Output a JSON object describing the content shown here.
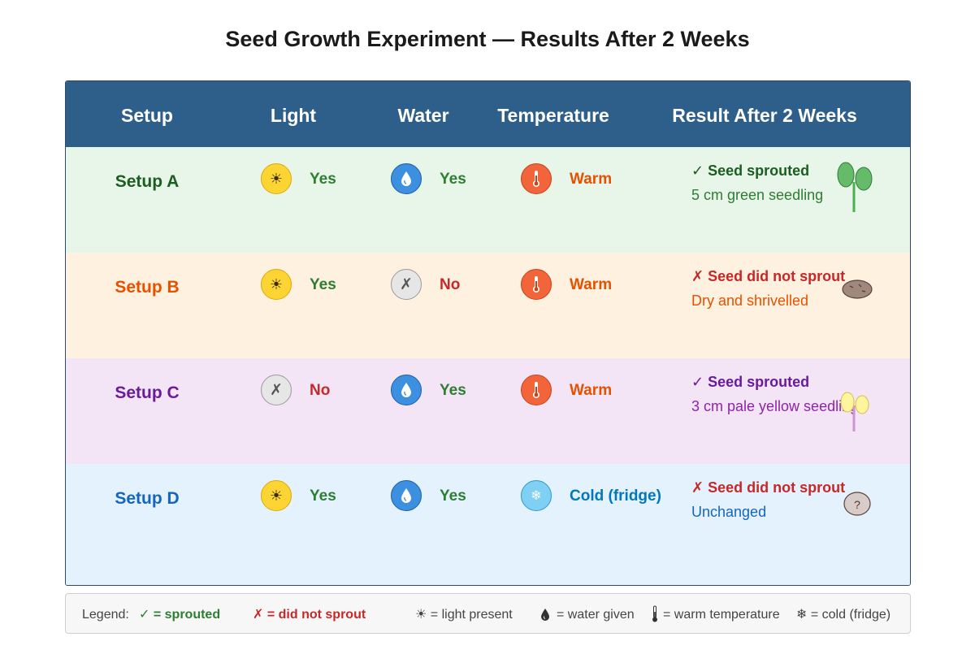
{
  "title": "Seed Growth Experiment — Results After 2 Weeks",
  "headers": {
    "setup": "Setup",
    "light": "Light",
    "water": "Water",
    "temperature": "Temperature",
    "result": "Result After 2 Weeks"
  },
  "rows": [
    {
      "setup": "Setup A",
      "light": "Yes",
      "water": "Yes",
      "temperature": "Warm",
      "result_head": "✓ Seed sprouted",
      "result_sub": "5 cm green seedling",
      "illustration": "green-seedling-icon"
    },
    {
      "setup": "Setup B",
      "light": "Yes",
      "water": "No",
      "temperature": "Warm",
      "result_head": "✗ Seed did not sprout",
      "result_sub": "Dry and shrivelled",
      "illustration": "shrivelled-seed-icon"
    },
    {
      "setup": "Setup C",
      "light": "No",
      "water": "Yes",
      "temperature": "Warm",
      "result_head": "✓ Seed sprouted",
      "result_sub": "3 cm pale yellow seedling",
      "illustration": "pale-seedling-icon"
    },
    {
      "setup": "Setup D",
      "light": "Yes",
      "water": "Yes",
      "temperature": "Cold (fridge)",
      "result_head": "✗ Seed did not sprout",
      "result_sub": "Unchanged",
      "illustration": "unchanged-seed-icon"
    }
  ],
  "icon_glyphs": {
    "none": "✗",
    "snow": "❄",
    "sun": "☀",
    "question": "?"
  },
  "legend": {
    "label": "Legend:",
    "sprouted": "✓ = sprouted",
    "not_sprouted": "✗ = did not sprout",
    "light": "☀ = light present",
    "water": "= water given",
    "warm": "= warm temperature",
    "cold": "❄ = cold (fridge)"
  },
  "colors": {
    "header_bg": "#2d5f8a",
    "row_a_bg": "#e8f5e9",
    "row_b_bg": "#fff1e0",
    "row_c_bg": "#f3e5f5",
    "row_d_bg": "#e3f2fd",
    "yes": "#2e7d32",
    "no": "#c62828",
    "warm": "#e65100",
    "cold": "#0277bd"
  }
}
